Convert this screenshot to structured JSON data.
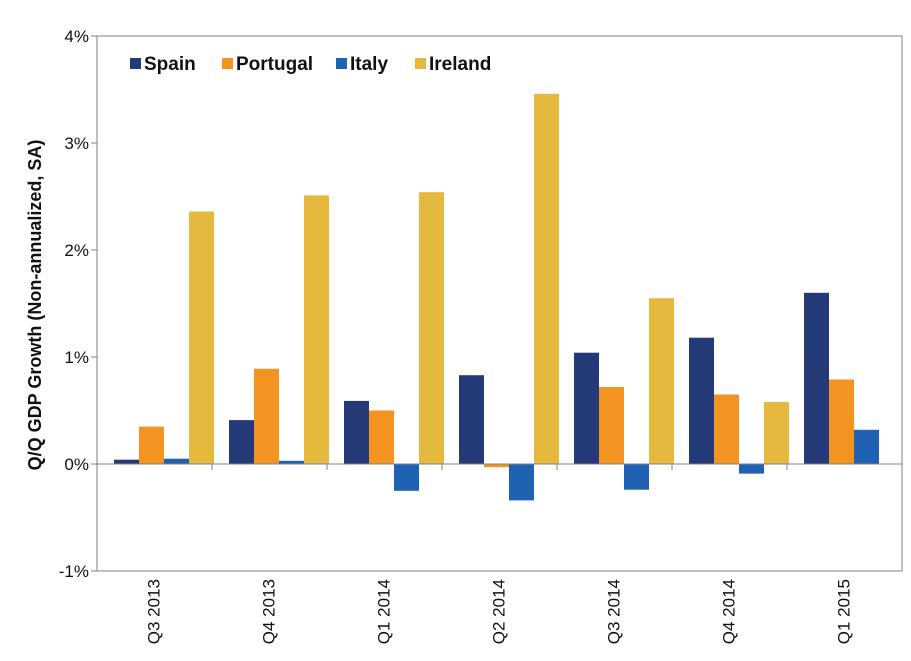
{
  "chart_data": {
    "type": "bar",
    "ylabel": "Q/Q GDP Growth (Non-annualized, SA)",
    "xlabel": "",
    "ylim": [
      -1,
      4
    ],
    "yticks": [
      -1,
      0,
      1,
      2,
      3,
      4
    ],
    "ytick_labels": [
      "-1%",
      "0%",
      "1%",
      "2%",
      "3%",
      "4%"
    ],
    "categories": [
      "Q3 2013",
      "Q4 2013",
      "Q1 2014",
      "Q2 2014",
      "Q3 2014",
      "Q4 2014",
      "Q1 2015"
    ],
    "legend_position": "top-left",
    "grid": false,
    "series": [
      {
        "name": "Spain",
        "color": "#243a78",
        "values": [
          0.04,
          0.41,
          0.59,
          0.83,
          1.04,
          1.18,
          1.6
        ]
      },
      {
        "name": "Portugal",
        "color": "#f39322",
        "values": [
          0.35,
          0.89,
          0.5,
          -0.03,
          0.72,
          0.65,
          0.79
        ]
      },
      {
        "name": "Italy",
        "color": "#1f62b4",
        "values": [
          0.05,
          0.03,
          -0.25,
          -0.34,
          -0.24,
          -0.09,
          0.32
        ]
      },
      {
        "name": "Ireland",
        "color": "#e5b83e",
        "values": [
          2.36,
          2.51,
          2.54,
          3.46,
          1.55,
          0.58,
          null
        ]
      }
    ]
  }
}
